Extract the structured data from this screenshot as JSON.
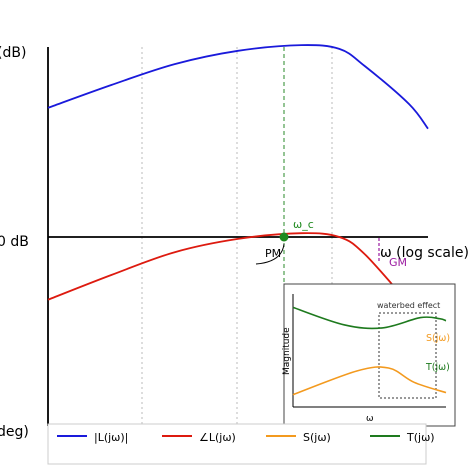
{
  "chart_data": {
    "type": "line",
    "xscale": "log",
    "xlabel": "ω (log scale)",
    "ylabel_top": "(dB)",
    "ylabel_zero": "0 dB",
    "ylabel_bottom": "deg)",
    "grid": "vertical dotted",
    "legend_placement": "bottom",
    "crossover_label": "ω_c",
    "pm_label": "PM",
    "gm_label": "GM",
    "series": [
      {
        "name": "|L(jω)|",
        "color": "#1a1adb",
        "points": [
          [
            0,
            68
          ],
          [
            1,
            80
          ],
          [
            2,
            91
          ],
          [
            3,
            98
          ],
          [
            4,
            101
          ],
          [
            4.6,
            99
          ],
          [
            5,
            90
          ],
          [
            5.7,
            70
          ],
          [
            6,
            57
          ]
        ]
      },
      {
        "name": "∠L(jω)",
        "color": "#dd1a0f",
        "points": [
          [
            0,
            -33
          ],
          [
            1,
            -20
          ],
          [
            2,
            -8
          ],
          [
            3,
            -1
          ],
          [
            4,
            2
          ],
          [
            4.6,
            0
          ],
          [
            5,
            -9
          ],
          [
            5.7,
            -35
          ],
          [
            6,
            -45
          ]
        ]
      }
    ],
    "inset": {
      "xlabel": "ω",
      "ylabel": "Magnitude",
      "annotation": "waterbed effect",
      "series": [
        {
          "name": "S(jω)",
          "color": "#f39a1f",
          "points": [
            [
              0,
              0.12
            ],
            [
              0.5,
              0.35
            ],
            [
              0.75,
              0.38
            ],
            [
              0.95,
              0.24
            ],
            [
              1.2,
              0.14
            ]
          ]
        },
        {
          "name": "T(jω)",
          "color": "#1e7a1e",
          "points": [
            [
              0,
              0.97
            ],
            [
              0.4,
              0.8
            ],
            [
              0.7,
              0.77
            ],
            [
              1.0,
              0.87
            ],
            [
              1.15,
              0.86
            ],
            [
              1.2,
              0.84
            ]
          ]
        }
      ]
    },
    "legend": [
      {
        "label": "|L(jω)|",
        "color": "#1a1adb"
      },
      {
        "label": "∠L(jω)",
        "color": "#dd1a0f"
      },
      {
        "label": "S(jω)",
        "color": "#f39a1f"
      },
      {
        "label": "T(jω)",
        "color": "#1e7a1e"
      }
    ]
  }
}
